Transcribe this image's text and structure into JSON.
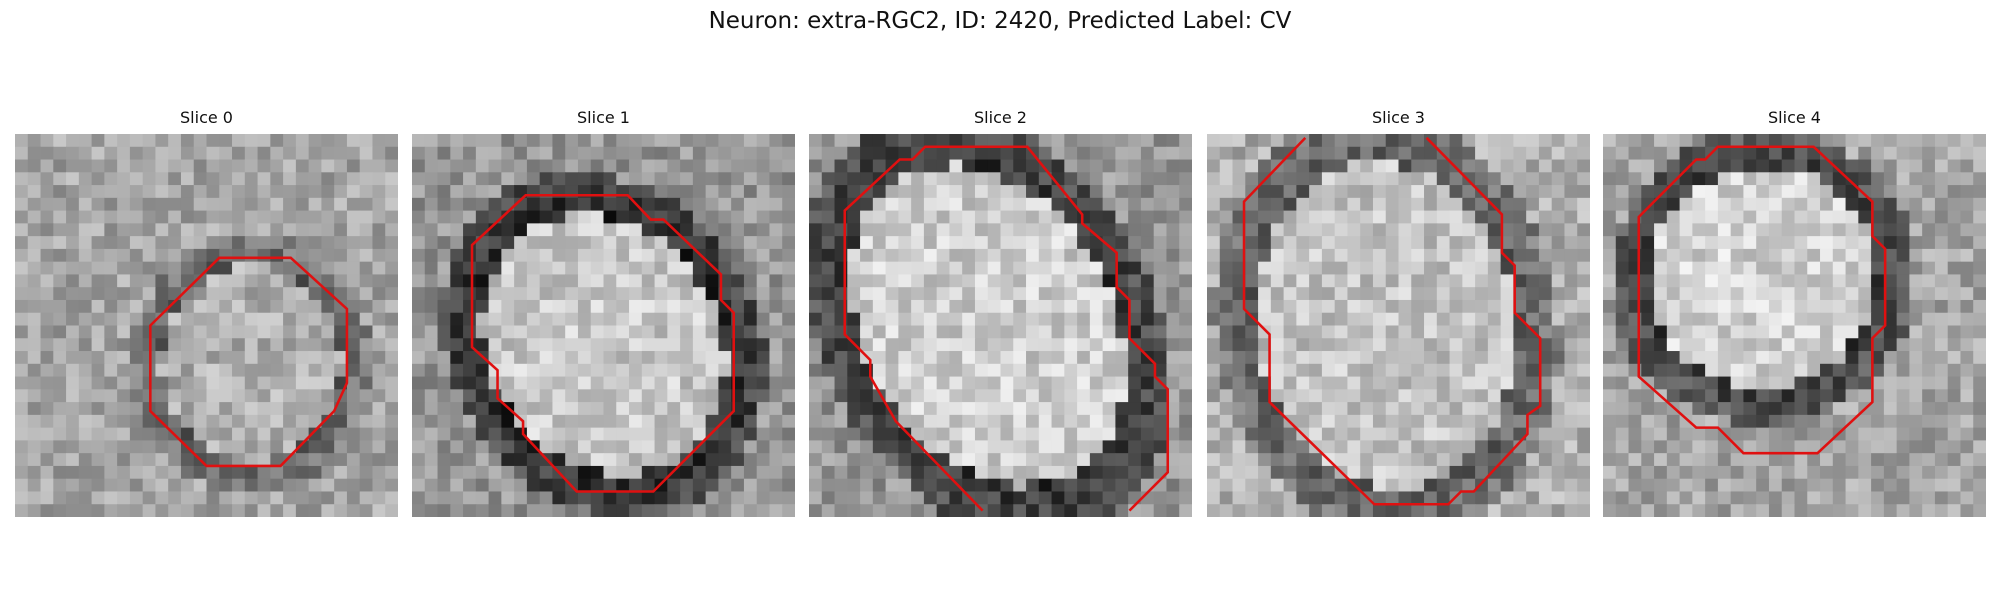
{
  "header": {
    "title": "Neuron: extra-RGC2, ID: 2420, Predicted Label: CV"
  },
  "panels": [
    {
      "title": "Slice 0"
    },
    {
      "title": "Slice 1"
    },
    {
      "title": "Slice 2"
    },
    {
      "title": "Slice 3"
    },
    {
      "title": "Slice 4"
    }
  ]
}
